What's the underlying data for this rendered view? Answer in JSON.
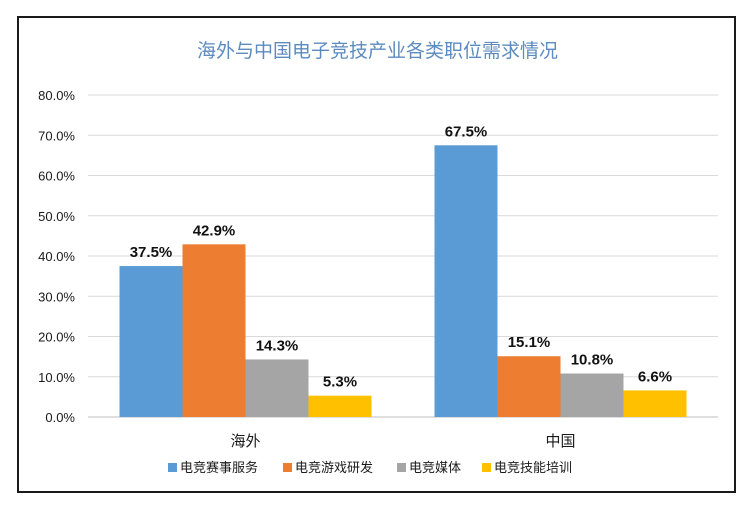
{
  "chart_data": {
    "type": "bar",
    "title": "海外与中国电子竞技产业各类职位需求情况",
    "categories": [
      "海外",
      "中国"
    ],
    "series": [
      {
        "name": "电竞赛事服务",
        "color": "#5b9bd5",
        "values": [
          37.5,
          67.5
        ]
      },
      {
        "name": "电竞游戏研发",
        "color": "#ed7d31",
        "values": [
          42.9,
          15.1
        ]
      },
      {
        "name": "电竞媒体",
        "color": "#a5a5a5",
        "values": [
          14.3,
          10.8
        ]
      },
      {
        "name": "电竞技能培训",
        "color": "#ffc000",
        "values": [
          5.3,
          6.6
        ]
      }
    ],
    "data_labels": [
      [
        "37.5%",
        "42.9%",
        "14.3%",
        "5.3%"
      ],
      [
        "67.5%",
        "15.1%",
        "10.8%",
        "6.6%"
      ]
    ],
    "ylim": [
      0,
      80
    ],
    "yticks": [
      "0.0%",
      "10.0%",
      "20.0%",
      "30.0%",
      "40.0%",
      "50.0%",
      "60.0%",
      "70.0%",
      "80.0%"
    ],
    "grid": true,
    "legend_position": "bottom"
  }
}
